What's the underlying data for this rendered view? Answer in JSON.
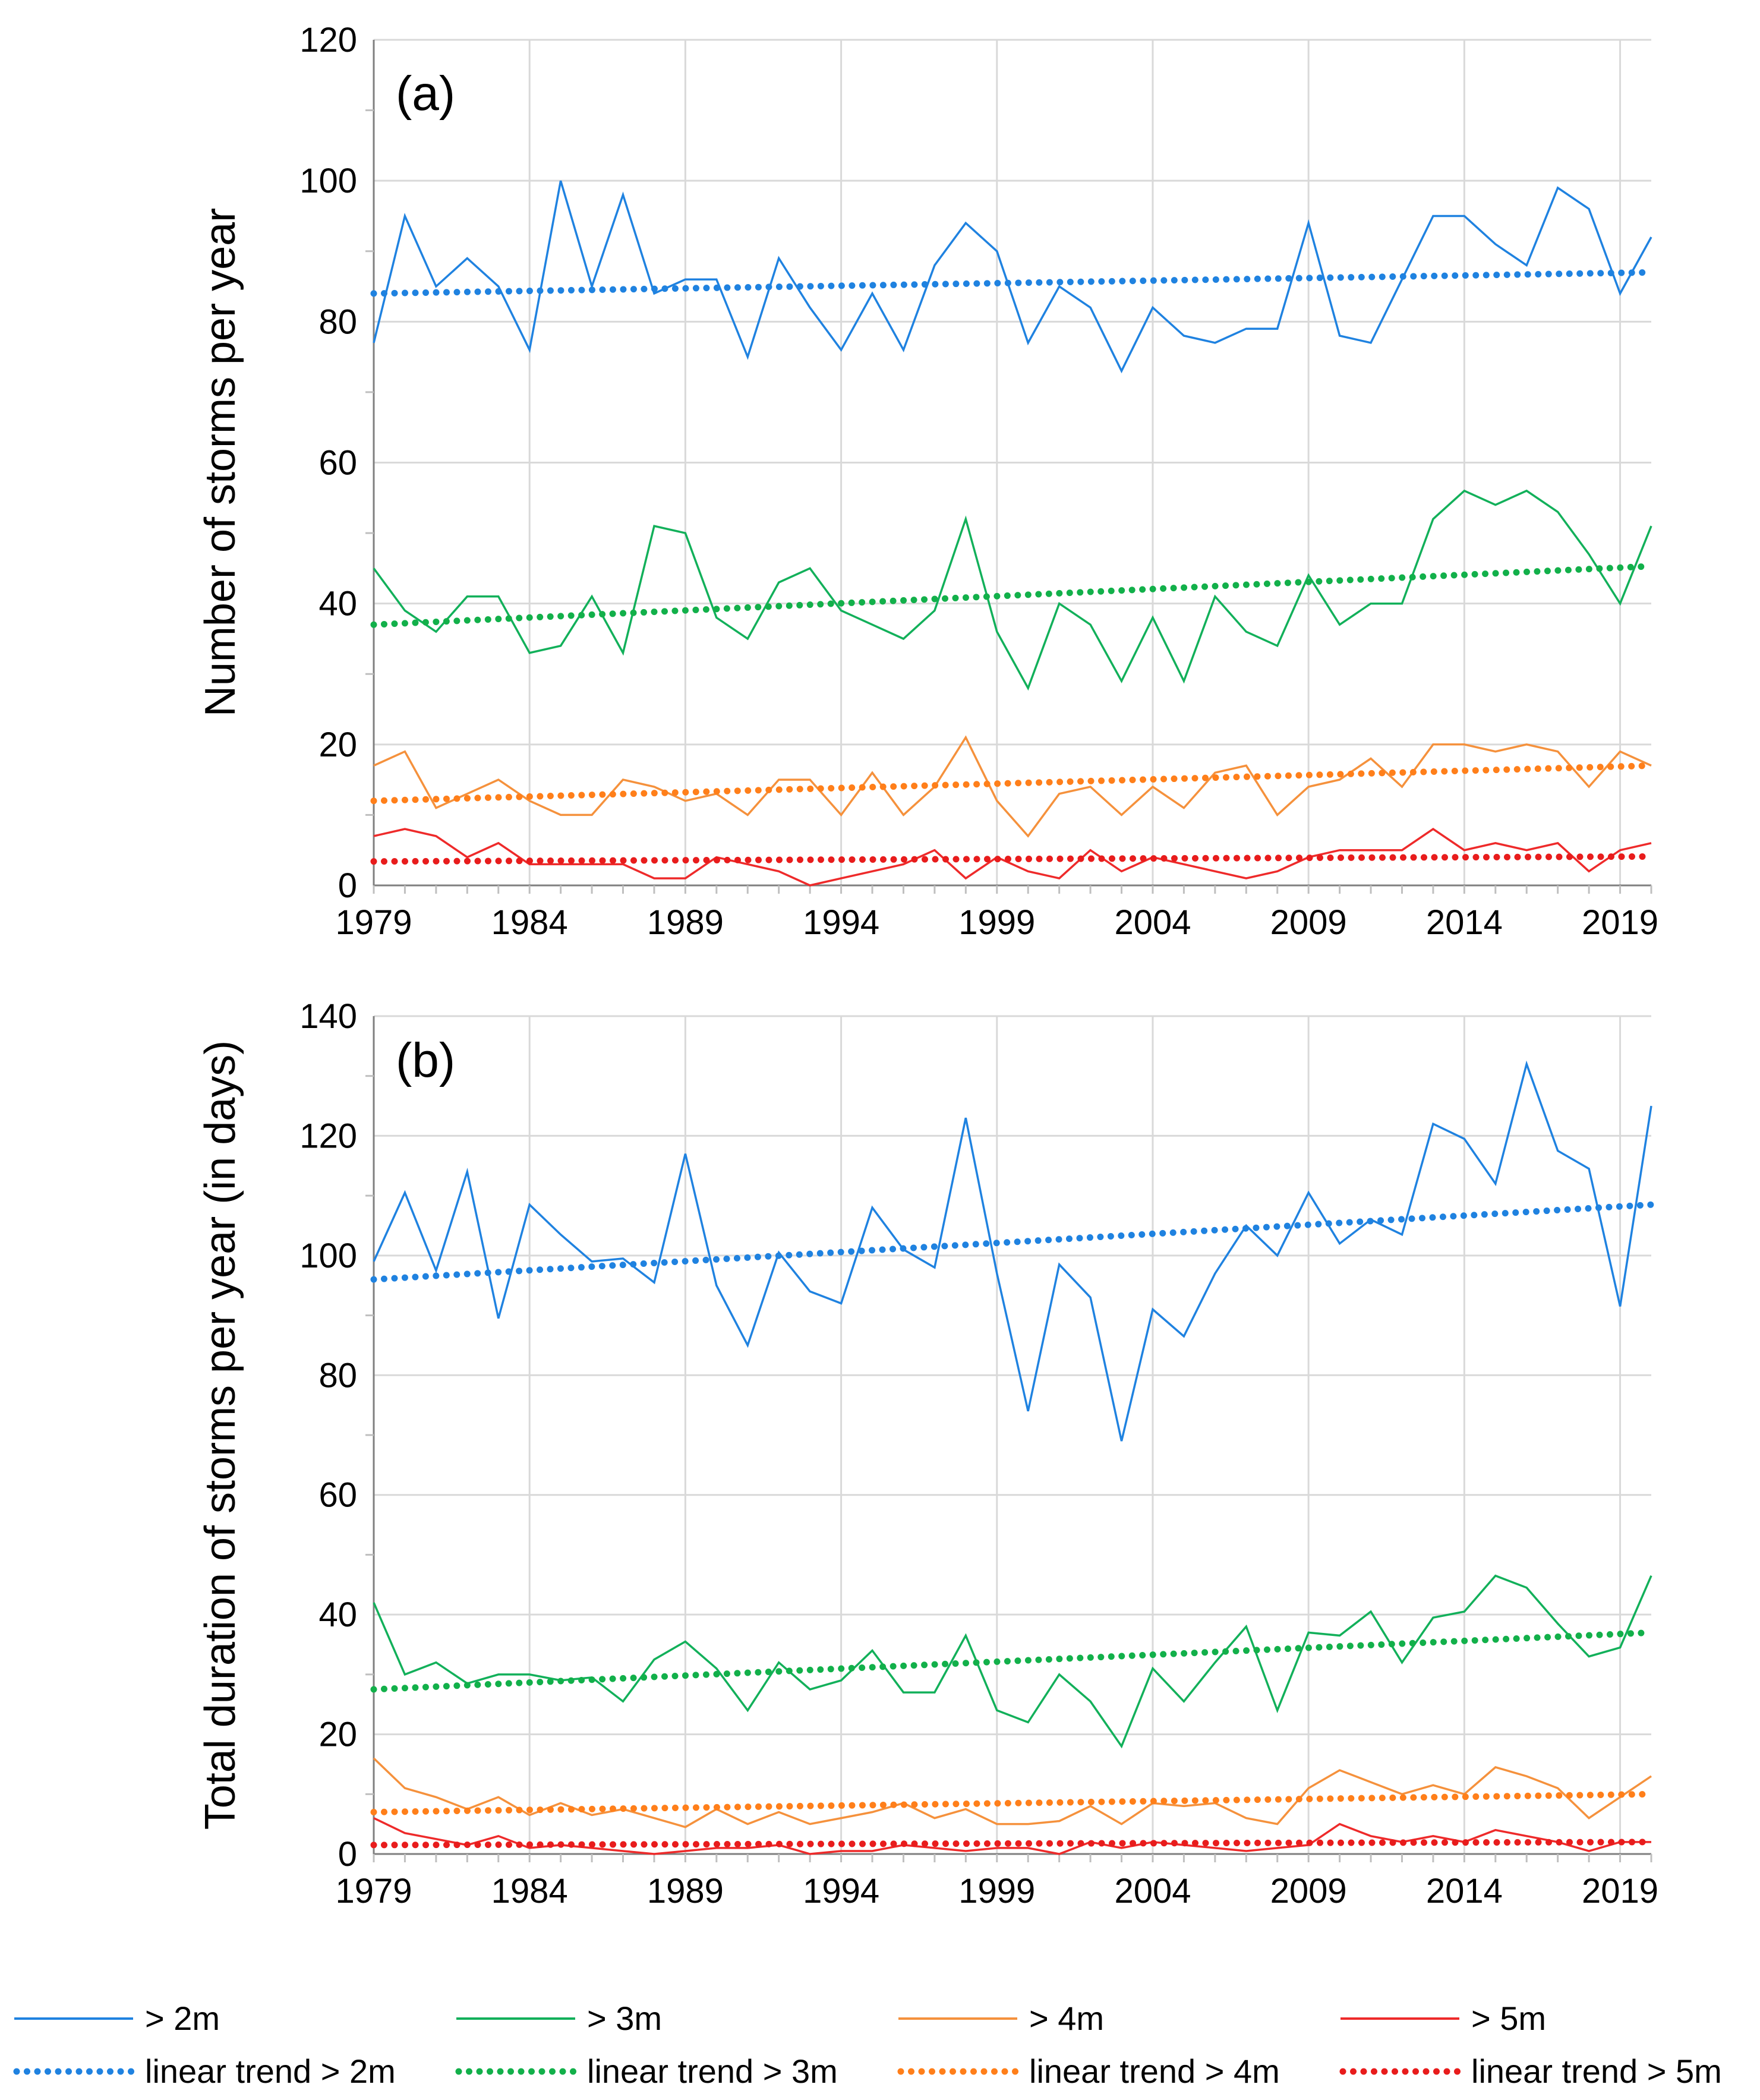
{
  "chart_data": [
    {
      "type": "line",
      "panel_label": "(a)",
      "title": "",
      "xlabel": "",
      "ylabel": "Number of storms per year",
      "xlim": [
        1979,
        2020
      ],
      "ylim": [
        0,
        120
      ],
      "x_ticks": [
        1979,
        1984,
        1989,
        1994,
        1999,
        2004,
        2009,
        2014,
        2019
      ],
      "y_ticks": [
        0,
        20,
        40,
        60,
        80,
        100,
        120
      ],
      "grid": true,
      "series": [
        {
          "name": "> 2m",
          "color": "#1F82E0",
          "values": [
            77,
            95,
            85,
            89,
            85,
            76,
            100,
            85,
            98,
            84,
            86,
            86,
            75,
            89,
            82,
            76,
            84,
            76,
            88,
            94,
            90,
            77,
            85,
            82,
            73,
            82,
            78,
            77,
            79,
            79,
            94,
            78,
            77,
            86,
            95,
            95,
            91,
            88,
            99,
            96,
            84,
            92
          ]
        },
        {
          "name": "> 3m",
          "color": "#12B05A",
          "values": [
            45,
            39,
            36,
            41,
            41,
            33,
            34,
            41,
            33,
            51,
            50,
            38,
            35,
            43,
            45,
            39,
            37,
            35,
            39,
            52,
            36,
            28,
            40,
            37,
            29,
            38,
            29,
            41,
            36,
            34,
            44,
            37,
            40,
            40,
            52,
            56,
            54,
            56,
            53,
            47,
            40,
            51
          ]
        },
        {
          "name": "> 4m",
          "color": "#F5913C",
          "values": [
            17,
            19,
            11,
            13,
            15,
            12,
            10,
            10,
            15,
            14,
            12,
            13,
            10,
            15,
            15,
            10,
            16,
            10,
            14,
            21,
            12,
            7,
            13,
            14,
            10,
            14,
            11,
            16,
            17,
            10,
            14,
            15,
            18,
            14,
            20,
            20,
            19,
            20,
            19,
            14,
            19,
            17
          ]
        },
        {
          "name": "> 5m",
          "color": "#EE2A2A",
          "values": [
            7,
            8,
            7,
            4,
            6,
            3,
            3,
            3,
            3,
            1,
            1,
            4,
            3,
            2,
            0,
            1,
            2,
            3,
            5,
            1,
            4,
            2,
            1,
            5,
            2,
            4,
            3,
            2,
            1,
            2,
            4,
            5,
            5,
            5,
            8,
            5,
            6,
            5,
            6,
            2,
            5,
            6
          ]
        }
      ],
      "trends": [
        {
          "name": "linear trend > 2m",
          "color": "#1F82E0",
          "start": 84,
          "end": 87
        },
        {
          "name": "linear trend > 3m",
          "color": "#12B04A",
          "start": 37,
          "end": 45.3
        },
        {
          "name": "linear trend > 4m",
          "color": "#FF7F1A",
          "start": 12,
          "end": 17
        },
        {
          "name": "linear trend > 5m",
          "color": "#E81C1C",
          "start": 3.4,
          "end": 4.1
        }
      ]
    },
    {
      "type": "line",
      "panel_label": "(b)",
      "title": "",
      "xlabel": "",
      "ylabel": "Total duration of storms per year (in days)",
      "xlim": [
        1979,
        2020
      ],
      "ylim": [
        0,
        140
      ],
      "x_ticks": [
        1979,
        1984,
        1989,
        1994,
        1999,
        2004,
        2009,
        2014,
        2019
      ],
      "y_ticks": [
        0,
        20,
        40,
        60,
        80,
        100,
        120,
        140
      ],
      "grid": true,
      "series": [
        {
          "name": "> 2m",
          "color": "#1F82E0",
          "values": [
            99,
            110.5,
            97.5,
            114,
            89.5,
            108.5,
            103.5,
            99,
            99.5,
            95.5,
            117,
            95,
            85,
            100.5,
            94,
            92,
            108,
            101,
            98,
            123,
            97,
            74,
            98.5,
            93,
            69,
            91,
            86.5,
            97,
            105,
            100,
            110.5,
            102,
            106,
            103.5,
            122,
            119.5,
            112,
            132,
            117.5,
            114.5,
            91.5,
            125
          ]
        },
        {
          "name": "> 3m",
          "color": "#12B05A",
          "values": [
            42,
            30,
            32,
            28.5,
            30,
            30,
            29,
            29.5,
            25.5,
            32.5,
            35.5,
            31,
            24,
            32,
            27.5,
            29,
            34,
            27,
            27,
            36.5,
            24,
            22,
            30,
            25.5,
            18,
            31,
            25.5,
            32,
            38,
            24,
            37,
            36.5,
            40.5,
            32,
            39.5,
            40.5,
            46.5,
            44.5,
            38.5,
            33,
            34.5,
            46.5
          ]
        },
        {
          "name": "> 4m",
          "color": "#F5913C",
          "values": [
            16,
            11,
            9.5,
            7.5,
            9.5,
            6.5,
            8.5,
            6.5,
            7.5,
            6,
            4.5,
            7.5,
            5,
            7,
            5,
            6,
            7,
            8.5,
            6,
            7.5,
            5,
            5,
            5.5,
            8,
            5,
            8.5,
            8,
            8.5,
            6,
            5,
            11,
            14,
            12,
            10,
            11.5,
            10,
            14.5,
            13,
            11,
            6,
            9.5,
            13
          ]
        },
        {
          "name": "> 5m",
          "color": "#EE2A2A",
          "values": [
            6,
            3.5,
            2.5,
            1.5,
            3,
            1,
            1.5,
            1,
            0.5,
            0,
            0.5,
            1,
            1,
            1.5,
            0,
            0.5,
            0.5,
            1.5,
            1,
            0.5,
            1,
            1,
            0,
            2,
            1,
            2,
            1.5,
            1,
            0.5,
            1,
            1.5,
            5,
            3,
            2,
            3,
            2,
            4,
            3,
            2,
            0.5,
            2,
            2
          ]
        }
      ],
      "trends": [
        {
          "name": "linear trend > 2m",
          "color": "#1F82E0",
          "start": 96,
          "end": 108.5
        },
        {
          "name": "linear trend > 3m",
          "color": "#12B04A",
          "start": 27.5,
          "end": 37
        },
        {
          "name": "linear trend > 4m",
          "color": "#FF7F1A",
          "start": 7,
          "end": 10
        },
        {
          "name": "linear trend > 5m",
          "color": "#E81C1C",
          "start": 1.5,
          "end": 2
        }
      ]
    }
  ],
  "legend": {
    "placement": "bottom",
    "entries": [
      {
        "label": "> 2m",
        "color": "#1F82E0",
        "style": "solid"
      },
      {
        "label": "> 3m",
        "color": "#12B05A",
        "style": "solid"
      },
      {
        "label": "> 4m",
        "color": "#F5913C",
        "style": "solid"
      },
      {
        "label": "> 5m",
        "color": "#EE2A2A",
        "style": "solid"
      },
      {
        "label": "linear trend > 2m",
        "color": "#1F82E0",
        "style": "dotted"
      },
      {
        "label": "linear trend > 3m",
        "color": "#12B04A",
        "style": "dotted"
      },
      {
        "label": "linear trend > 4m",
        "color": "#FF7F1A",
        "style": "dotted"
      },
      {
        "label": "linear trend > 5m",
        "color": "#E81C1C",
        "style": "dotted"
      }
    ]
  }
}
